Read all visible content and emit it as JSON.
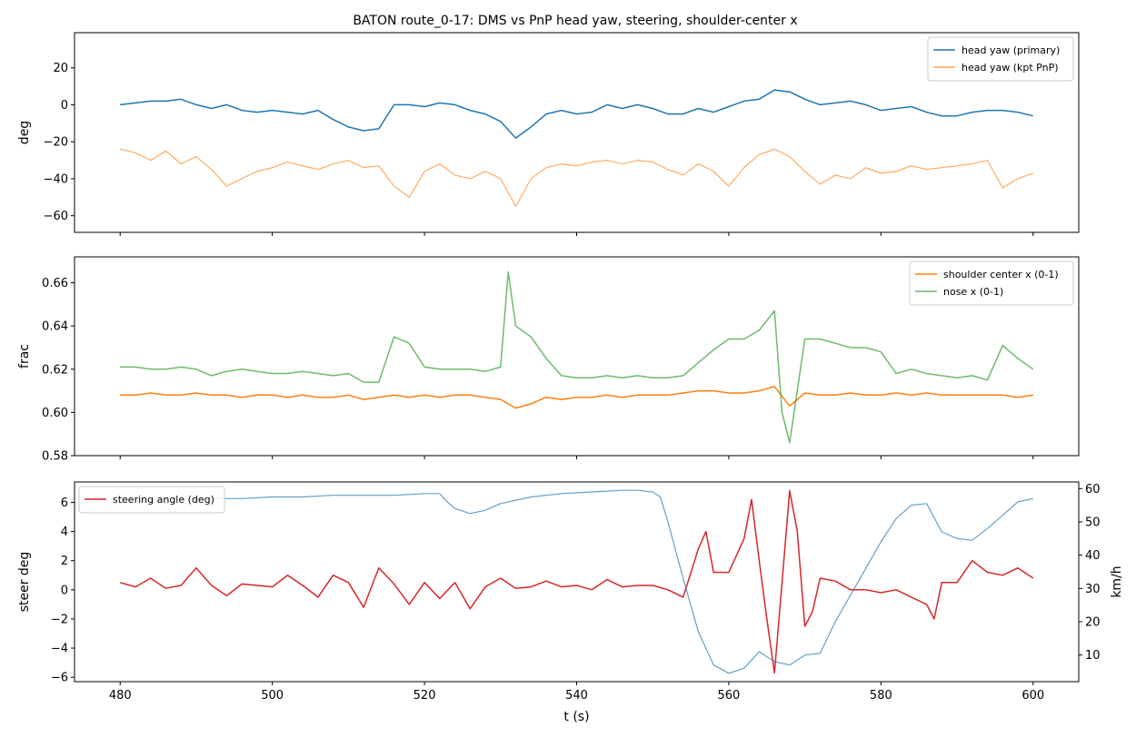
{
  "chart_data": [
    {
      "type": "line",
      "title": "BATON route_0-17: DMS vs PnP head yaw, steering, shoulder-center x",
      "xlabel": "",
      "ylabel": "deg",
      "xlim": [
        474,
        606
      ],
      "ylim": [
        -69,
        39
      ],
      "xticks": [
        480,
        500,
        520,
        540,
        560,
        580,
        600
      ],
      "yticks": [
        -60,
        -40,
        -20,
        0,
        20
      ],
      "xtick_labels_shown": false,
      "grid": false,
      "legend": "top-right",
      "series": [
        {
          "name": "head yaw (primary)",
          "color": "#1f77b4",
          "x": [
            480,
            482,
            484,
            486,
            488,
            490,
            492,
            494,
            496,
            498,
            500,
            502,
            504,
            506,
            508,
            510,
            512,
            514,
            516,
            518,
            520,
            522,
            524,
            526,
            528,
            530,
            532,
            534,
            536,
            538,
            540,
            542,
            544,
            546,
            548,
            550,
            552,
            554,
            556,
            558,
            560,
            562,
            564,
            566,
            568,
            570,
            572,
            574,
            576,
            578,
            580,
            582,
            584,
            586,
            588,
            590,
            592,
            594,
            596,
            598,
            600
          ],
          "values": [
            0,
            1,
            2,
            2,
            3,
            0,
            -2,
            0,
            -3,
            -4,
            -3,
            -4,
            -5,
            -3,
            -8,
            -12,
            -14,
            -13,
            0,
            0,
            -1,
            1,
            0,
            -3,
            -5,
            -9,
            -18,
            -12,
            -5,
            -3,
            -5,
            -4,
            0,
            -2,
            0,
            -2,
            -5,
            -5,
            -2,
            -4,
            -1,
            2,
            3,
            8,
            7,
            3,
            0,
            1,
            2,
            0,
            -3,
            -2,
            -1,
            -4,
            -6,
            -6,
            -4,
            -3,
            -3,
            -4,
            -6
          ]
        },
        {
          "name": "head yaw (kpt PnP)",
          "color": "#ff7f0e",
          "x": [
            480,
            482,
            484,
            486,
            488,
            490,
            492,
            494,
            496,
            498,
            500,
            502,
            504,
            506,
            508,
            510,
            512,
            514,
            516,
            518,
            520,
            522,
            524,
            526,
            528,
            530,
            532,
            534,
            536,
            538,
            540,
            542,
            544,
            546,
            548,
            550,
            552,
            554,
            556,
            558,
            560,
            562,
            564,
            566,
            568,
            570,
            572,
            574,
            576,
            578,
            580,
            582,
            584,
            586,
            588,
            590,
            592,
            594,
            596,
            598,
            600
          ],
          "values": [
            -24,
            -26,
            -30,
            -25,
            -32,
            -28,
            -35,
            -44,
            -40,
            -36,
            -34,
            -31,
            -33,
            -35,
            -32,
            -30,
            -34,
            -33,
            -44,
            -50,
            -36,
            -32,
            -38,
            -40,
            -36,
            -40,
            -55,
            -40,
            -34,
            -32,
            -33,
            -31,
            -30,
            -32,
            -30,
            -31,
            -35,
            -38,
            -32,
            -36,
            -44,
            -34,
            -27,
            -24,
            -28,
            -36,
            -43,
            -38,
            -40,
            -34,
            -37,
            -36,
            -33,
            -35,
            -34,
            -33,
            -32,
            -30,
            -45,
            -40,
            -37
          ]
        }
      ]
    },
    {
      "type": "line",
      "title": "",
      "xlabel": "",
      "ylabel": "frac",
      "xlim": [
        474,
        606
      ],
      "ylim": [
        0.58,
        0.672
      ],
      "xticks": [
        480,
        500,
        520,
        540,
        560,
        580,
        600
      ],
      "yticks": [
        0.58,
        0.6,
        0.62,
        0.64,
        0.66
      ],
      "ytick_labels": [
        "0.58",
        "0.60",
        "0.62",
        "0.64",
        "0.66"
      ],
      "xtick_labels_shown": false,
      "grid": false,
      "legend": "top-right",
      "series": [
        {
          "name": "shoulder center x (0-1)",
          "color": "#ff7f0e",
          "x": [
            480,
            482,
            484,
            486,
            488,
            490,
            492,
            494,
            496,
            498,
            500,
            502,
            504,
            506,
            508,
            510,
            512,
            514,
            516,
            518,
            520,
            522,
            524,
            526,
            528,
            530,
            532,
            534,
            536,
            538,
            540,
            542,
            544,
            546,
            548,
            550,
            552,
            554,
            556,
            558,
            560,
            562,
            564,
            566,
            568,
            570,
            572,
            574,
            576,
            578,
            580,
            582,
            584,
            586,
            588,
            590,
            592,
            594,
            596,
            598,
            600
          ],
          "values": [
            0.608,
            0.608,
            0.609,
            0.608,
            0.608,
            0.609,
            0.608,
            0.608,
            0.607,
            0.608,
            0.608,
            0.607,
            0.608,
            0.607,
            0.607,
            0.608,
            0.606,
            0.607,
            0.608,
            0.607,
            0.608,
            0.607,
            0.608,
            0.608,
            0.607,
            0.606,
            0.602,
            0.604,
            0.607,
            0.606,
            0.607,
            0.607,
            0.608,
            0.607,
            0.608,
            0.608,
            0.608,
            0.609,
            0.61,
            0.61,
            0.609,
            0.609,
            0.61,
            0.612,
            0.603,
            0.609,
            0.608,
            0.608,
            0.609,
            0.608,
            0.608,
            0.609,
            0.608,
            0.609,
            0.608,
            0.608,
            0.608,
            0.608,
            0.608,
            0.607,
            0.608
          ]
        },
        {
          "name": "nose x (0-1)",
          "color": "#2ca02c",
          "x": [
            480,
            482,
            484,
            486,
            488,
            490,
            492,
            494,
            496,
            498,
            500,
            502,
            504,
            506,
            508,
            510,
            512,
            514,
            516,
            518,
            520,
            522,
            524,
            526,
            528,
            530,
            531,
            532,
            534,
            536,
            538,
            540,
            542,
            544,
            546,
            548,
            550,
            552,
            554,
            556,
            558,
            560,
            562,
            564,
            566,
            567,
            568,
            570,
            572,
            574,
            576,
            578,
            580,
            582,
            584,
            586,
            588,
            590,
            592,
            594,
            596,
            598,
            600
          ],
          "values": [
            0.621,
            0.621,
            0.62,
            0.62,
            0.621,
            0.62,
            0.617,
            0.619,
            0.62,
            0.619,
            0.618,
            0.618,
            0.619,
            0.618,
            0.617,
            0.618,
            0.614,
            0.614,
            0.635,
            0.632,
            0.621,
            0.62,
            0.62,
            0.62,
            0.619,
            0.621,
            0.665,
            0.64,
            0.635,
            0.625,
            0.617,
            0.616,
            0.616,
            0.617,
            0.616,
            0.617,
            0.616,
            0.616,
            0.617,
            0.623,
            0.629,
            0.634,
            0.634,
            0.638,
            0.647,
            0.6,
            0.586,
            0.634,
            0.634,
            0.632,
            0.63,
            0.63,
            0.628,
            0.618,
            0.62,
            0.618,
            0.617,
            0.616,
            0.617,
            0.615,
            0.631,
            0.625,
            0.62
          ]
        }
      ]
    },
    {
      "type": "line",
      "title": "",
      "xlabel": "t (s)",
      "ylabel": "steer deg",
      "ylabel_right": "km/h",
      "xlim": [
        474,
        606
      ],
      "ylim": [
        -6.3,
        7.4
      ],
      "ylim_right": [
        2,
        62
      ],
      "xticks": [
        480,
        500,
        520,
        540,
        560,
        580,
        600
      ],
      "yticks": [
        -6,
        -4,
        -2,
        0,
        2,
        4,
        6
      ],
      "yticks_right": [
        10,
        20,
        30,
        40,
        50,
        60
      ],
      "grid": false,
      "legend": "top-left",
      "series": [
        {
          "name": "steering angle (deg)",
          "color": "#d62728",
          "axis": "left",
          "x": [
            480,
            482,
            484,
            486,
            488,
            490,
            492,
            494,
            496,
            498,
            500,
            502,
            504,
            506,
            508,
            510,
            512,
            514,
            516,
            518,
            520,
            522,
            524,
            526,
            528,
            530,
            532,
            534,
            536,
            538,
            540,
            542,
            544,
            546,
            548,
            550,
            552,
            554,
            556,
            557,
            558,
            559,
            560,
            562,
            563,
            564,
            565,
            566,
            567,
            568,
            569,
            570,
            571,
            572,
            574,
            576,
            578,
            580,
            582,
            584,
            586,
            587,
            588,
            590,
            592,
            594,
            596,
            598,
            600
          ],
          "values": [
            0.5,
            0.2,
            0.8,
            0.1,
            0.3,
            1.5,
            0.3,
            -0.4,
            0.4,
            0.3,
            0.2,
            1.0,
            0.3,
            -0.5,
            1.0,
            0.5,
            -1.2,
            1.5,
            0.4,
            -1.0,
            0.5,
            -0.6,
            0.5,
            -1.3,
            0.2,
            0.8,
            0.1,
            0.2,
            0.6,
            0.2,
            0.3,
            0.0,
            0.7,
            0.2,
            0.3,
            0.3,
            0.0,
            -0.5,
            2.8,
            4.0,
            1.2,
            1.2,
            1.2,
            3.5,
            6.2,
            2.0,
            -2.0,
            -5.7,
            0.5,
            6.8,
            4.0,
            -2.5,
            -1.5,
            0.8,
            0.6,
            0.0,
            0.0,
            -0.2,
            0.0,
            -0.5,
            -1.0,
            -2.0,
            0.5,
            0.5,
            2.0,
            1.2,
            1.0,
            1.5,
            0.8
          ]
        },
        {
          "name": "",
          "color": "#1f77b4",
          "axis": "right",
          "x": [
            480,
            484,
            488,
            492,
            496,
            500,
            504,
            508,
            512,
            516,
            520,
            522,
            523,
            524,
            526,
            528,
            530,
            534,
            538,
            542,
            546,
            548,
            550,
            551,
            552,
            554,
            556,
            558,
            560,
            562,
            564,
            566,
            568,
            570,
            572,
            574,
            576,
            578,
            580,
            582,
            584,
            586,
            588,
            590,
            592,
            594,
            596,
            598,
            600
          ],
          "values": [
            56,
            56.5,
            57,
            57,
            57,
            57.5,
            57.5,
            58,
            58,
            58,
            58.5,
            58.5,
            56,
            54,
            52.5,
            53.5,
            55.5,
            57.5,
            58.5,
            59,
            59.5,
            59.5,
            59,
            57.5,
            50,
            33,
            17,
            7,
            4.5,
            6,
            11,
            8,
            7,
            10,
            10.5,
            20,
            28,
            36,
            44,
            51,
            55,
            55.5,
            47,
            45,
            44.5,
            48,
            52,
            56,
            57
          ]
        }
      ]
    }
  ]
}
